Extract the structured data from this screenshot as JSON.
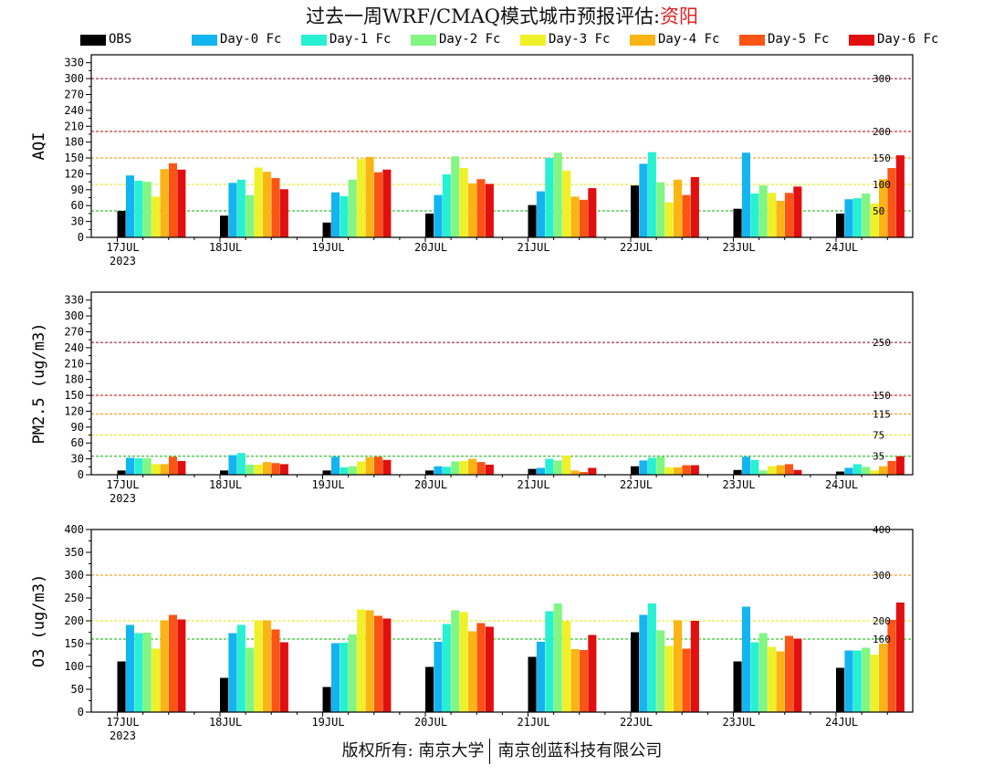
{
  "title": {
    "main": "过去一周WRF/CMAQ模式城市预报评估:",
    "city": "资阳"
  },
  "legend": [
    {
      "label": "OBS",
      "color": "#000000"
    },
    {
      "label": "Day-0 Fc",
      "color": "#14b4f0"
    },
    {
      "label": "Day-1 Fc",
      "color": "#28f0d2"
    },
    {
      "label": "Day-2 Fc",
      "color": "#82f582"
    },
    {
      "label": "Day-3 Fc",
      "color": "#f0f028"
    },
    {
      "label": "Day-4 Fc",
      "color": "#fab414"
    },
    {
      "label": "Day-5 Fc",
      "color": "#fa5514"
    },
    {
      "label": "Day-6 Fc",
      "color": "#e10f0f"
    }
  ],
  "footer": {
    "left": "版权所有: 南京大学",
    "right": "南京创蓝科技有限公司"
  },
  "chart_data": [
    {
      "type": "bar",
      "ylabel": "AQI",
      "ylim": [
        0,
        345
      ],
      "yticks": [
        0,
        30,
        60,
        90,
        120,
        150,
        180,
        210,
        240,
        270,
        300,
        330
      ],
      "categories": [
        "17JUL",
        "18JUL",
        "19JUL",
        "20JUL",
        "21JUL",
        "22JUL",
        "23JUL",
        "24JUL"
      ],
      "year_label": "2023",
      "thresholds": [
        {
          "value": 50,
          "label": "50",
          "color": "#00b400"
        },
        {
          "value": 100,
          "label": "100",
          "color": "#e6e600"
        },
        {
          "value": 150,
          "label": "150",
          "color": "#f08c00"
        },
        {
          "value": 200,
          "label": "200",
          "color": "#c80000"
        },
        {
          "value": 300,
          "label": "300",
          "color": "#8c0028"
        }
      ],
      "series": [
        {
          "name": "OBS",
          "values": [
            50,
            41,
            28,
            45,
            61,
            98,
            54,
            45
          ]
        },
        {
          "name": "Day-0 Fc",
          "values": [
            117,
            103,
            85,
            80,
            87,
            139,
            160,
            72
          ]
        },
        {
          "name": "Day-1 Fc",
          "values": [
            107,
            109,
            78,
            119,
            150,
            161,
            83,
            74
          ]
        },
        {
          "name": "Day-2 Fc",
          "values": [
            105,
            80,
            109,
            153,
            160,
            104,
            98,
            83
          ]
        },
        {
          "name": "Day-3 Fc",
          "values": [
            77,
            132,
            148,
            131,
            126,
            66,
            84,
            64
          ]
        },
        {
          "name": "Day-4 Fc",
          "values": [
            129,
            124,
            152,
            102,
            77,
            109,
            69,
            110
          ]
        },
        {
          "name": "Day-5 Fc",
          "values": [
            140,
            112,
            123,
            110,
            71,
            80,
            84,
            131
          ]
        },
        {
          "name": "Day-6 Fc",
          "values": [
            128,
            91,
            128,
            101,
            93,
            114,
            96,
            155
          ]
        }
      ]
    },
    {
      "type": "bar",
      "ylabel": "PM2.5 (ug/m3)",
      "ylim": [
        0,
        345
      ],
      "yticks": [
        0,
        30,
        60,
        90,
        120,
        150,
        180,
        210,
        240,
        270,
        300,
        330
      ],
      "categories": [
        "17JUL",
        "18JUL",
        "19JUL",
        "20JUL",
        "21JUL",
        "22JUL",
        "23JUL",
        "24JUL"
      ],
      "year_label": "2023",
      "thresholds": [
        {
          "value": 35,
          "label": "35",
          "color": "#00b400"
        },
        {
          "value": 75,
          "label": "75",
          "color": "#e6e600"
        },
        {
          "value": 115,
          "label": "115",
          "color": "#f08c00"
        },
        {
          "value": 150,
          "label": "150",
          "color": "#c80000"
        },
        {
          "value": 250,
          "label": "250",
          "color": "#8c0028"
        }
      ],
      "series": [
        {
          "name": "OBS",
          "values": [
            8,
            8,
            8,
            8,
            11,
            16,
            9,
            6
          ]
        },
        {
          "name": "Day-0 Fc",
          "values": [
            32,
            37,
            34,
            16,
            13,
            27,
            34,
            13
          ]
        },
        {
          "name": "Day-1 Fc",
          "values": [
            31,
            41,
            14,
            15,
            30,
            32,
            28,
            20
          ]
        },
        {
          "name": "Day-2 Fc",
          "values": [
            31,
            19,
            16,
            25,
            27,
            34,
            8,
            15
          ]
        },
        {
          "name": "Day-3 Fc",
          "values": [
            20,
            19,
            25,
            26,
            36,
            14,
            16,
            8
          ]
        },
        {
          "name": "Day-4 Fc",
          "values": [
            20,
            24,
            33,
            30,
            8,
            14,
            18,
            16
          ]
        },
        {
          "name": "Day-5 Fc",
          "values": [
            34,
            22,
            34,
            24,
            5,
            18,
            20,
            26
          ]
        },
        {
          "name": "Day-6 Fc",
          "values": [
            26,
            20,
            28,
            19,
            13,
            18,
            9,
            35
          ]
        }
      ]
    },
    {
      "type": "bar",
      "ylabel": "O3 (ug/m3)",
      "ylim": [
        0,
        400
      ],
      "yticks": [
        0,
        50,
        100,
        150,
        200,
        250,
        300,
        350,
        400
      ],
      "categories": [
        "17JUL",
        "18JUL",
        "19JUL",
        "20JUL",
        "21JUL",
        "22JUL",
        "23JUL",
        "24JUL"
      ],
      "year_label": "2023",
      "thresholds": [
        {
          "value": 160,
          "label": "160",
          "color": "#00b400"
        },
        {
          "value": 200,
          "label": "200",
          "color": "#e6e600"
        },
        {
          "value": 300,
          "label": "300",
          "color": "#f08c00"
        },
        {
          "value": 400,
          "label": "400",
          "color": "#c80000"
        }
      ],
      "series": [
        {
          "name": "OBS",
          "values": [
            111,
            75,
            55,
            99,
            121,
            175,
            111,
            97
          ]
        },
        {
          "name": "Day-0 Fc",
          "values": [
            191,
            173,
            151,
            154,
            154,
            213,
            231,
            135
          ]
        },
        {
          "name": "Day-1 Fc",
          "values": [
            173,
            191,
            152,
            193,
            221,
            238,
            153,
            135
          ]
        },
        {
          "name": "Day-2 Fc",
          "values": [
            174,
            141,
            170,
            223,
            238,
            179,
            173,
            141
          ]
        },
        {
          "name": "Day-3 Fc",
          "values": [
            139,
            201,
            225,
            219,
            199,
            145,
            143,
            126
          ]
        },
        {
          "name": "Day-4 Fc",
          "values": [
            201,
            201,
            223,
            177,
            138,
            201,
            133,
            150
          ]
        },
        {
          "name": "Day-5 Fc",
          "values": [
            213,
            181,
            211,
            195,
            136,
            139,
            167,
            202
          ]
        },
        {
          "name": "Day-6 Fc",
          "values": [
            203,
            153,
            205,
            187,
            169,
            200,
            161,
            240
          ]
        }
      ]
    }
  ]
}
